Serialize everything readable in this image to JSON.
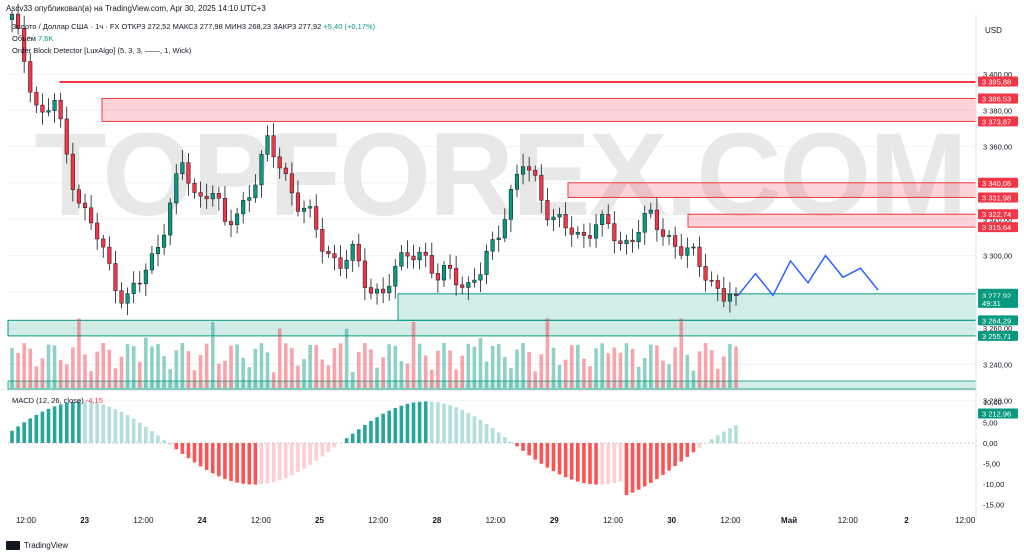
{
  "header": {
    "published_line": "Ascv33 опубликовал(а) на TradingView.com, Apr 30, 2025 14:10 UTC+3",
    "symbol_line": "Золото / Доллар США · 1ч · FX",
    "ohlc": {
      "open": "ОТКР3 272,52",
      "high": "МАКС3 277,98",
      "low": "МИН3 268,23",
      "close": "ЗАКР3 277,92",
      "change": "+5,40 (+0,17%)"
    },
    "volume_label": "Объём",
    "volume_value": "7,6K",
    "indicator_label": "Order Block Detector [LuxAlgo] (5, 3, 3, ——, 1, Wick)",
    "macd_label": "MACD (12, 26, close)",
    "macd_value": "-4,15"
  },
  "watermark": "TOPFOREX.COM",
  "footer": {
    "brand": "TradingView"
  },
  "colors": {
    "up": "#089981",
    "down": "#f23645",
    "forecast": "#2962ff",
    "ob_bear": "#f23645",
    "ob_bull": "#089981"
  },
  "chart_data": {
    "type": "candlestick",
    "currency": "USD",
    "price_axis_ticks": [
      "3 400,00",
      "3 380,00",
      "3 360,00",
      "3 340,00",
      "3 320,00",
      "3 300,00",
      "3 280,00",
      "3 260,00",
      "3 240,00",
      "3 220,00"
    ],
    "price_labels": [
      {
        "text": "3 395,88",
        "value": 3395.88,
        "kind": "bear"
      },
      {
        "text": "3 386,53",
        "value": 3386.53,
        "kind": "bear"
      },
      {
        "text": "3 373,87",
        "value": 3373.87,
        "kind": "bear"
      },
      {
        "text": "3 340,06",
        "value": 3340.06,
        "kind": "bear"
      },
      {
        "text": "3 331,98",
        "value": 3331.98,
        "kind": "bear"
      },
      {
        "text": "3 322,74",
        "value": 3322.74,
        "kind": "bear"
      },
      {
        "text": "3 315,64",
        "value": 3315.64,
        "kind": "bear"
      },
      {
        "text": "3 278,90",
        "value": 3278.9,
        "kind": "bull"
      },
      {
        "text": "3 277,92",
        "value": 3277.92,
        "kind": "last"
      },
      {
        "text": "49:31",
        "value": 3273.9,
        "kind": "timer"
      },
      {
        "text": "3 264,29",
        "value": 3264.29,
        "kind": "bull"
      },
      {
        "text": "3 255,71",
        "value": 3255.71,
        "kind": "bull"
      },
      {
        "text": "3 212,96",
        "value": 3212.96,
        "kind": "bull"
      }
    ],
    "time_labels": [
      "12:00",
      "23",
      "12:00",
      "24",
      "12:00",
      "25",
      "12:00",
      "28",
      "12:00",
      "29",
      "12:00",
      "30",
      "12:00",
      "Май",
      "12:00",
      "2",
      "12:00"
    ],
    "macd_axis_ticks": [
      "10,00",
      "5,00",
      "0,00",
      "-5,00",
      "-10,00",
      "-15,00"
    ],
    "order_blocks": [
      {
        "type": "bearish",
        "top": 3395.88,
        "bottom": 3395.88
      },
      {
        "type": "bearish",
        "top": 3386.53,
        "bottom": 3373.87
      },
      {
        "type": "bearish",
        "top": 3340.06,
        "bottom": 3331.98
      },
      {
        "type": "bearish",
        "top": 3322.74,
        "bottom": 3315.64
      },
      {
        "type": "bullish",
        "top": 3278.9,
        "bottom": 3264.29
      },
      {
        "type": "bullish",
        "top": 3264.29,
        "bottom": 3255.71
      }
    ],
    "close_path": [
      3430,
      3405,
      3375,
      3385,
      3350,
      3325,
      3310,
      3290,
      3275,
      3285,
      3300,
      3325,
      3350,
      3330,
      3340,
      3315,
      3325,
      3340,
      3360,
      3350,
      3330,
      3320,
      3305,
      3295,
      3300,
      3285,
      3278,
      3290,
      3305,
      3300,
      3285,
      3295,
      3280,
      3290,
      3310,
      3330,
      3350,
      3340,
      3320,
      3315,
      3310,
      3318,
      3315,
      3305,
      3315,
      3320,
      3312,
      3305,
      3298,
      3290,
      3278,
      3277.92
    ],
    "forecast_path": [
      3277.92,
      3290,
      3278,
      3297,
      3285,
      3300,
      3288,
      3293,
      3281
    ]
  }
}
